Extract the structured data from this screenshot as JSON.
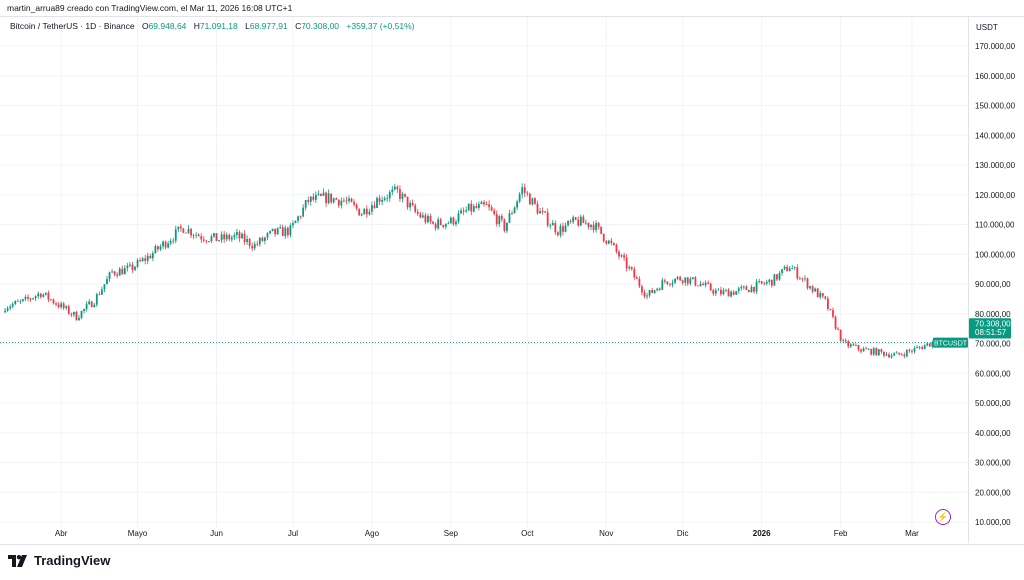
{
  "credit": "martin_arrua89 creado con TradingView.com, el Mar 11, 2026 16:08 UTC+1",
  "legend": {
    "symbol": "Bitcoin / TetherUS · 1D · Binance",
    "o_label": "O",
    "o": "69.948,64",
    "h_label": "H",
    "h": "71.091,18",
    "l_label": "L",
    "l": "68.977,91",
    "c_label": "C",
    "c": "70.308,00",
    "change": "+359,37 (+0,51%)"
  },
  "currency": "USDT",
  "price_label": {
    "ticker": "BTCUSDT",
    "price": "70.308,00",
    "countdown": "08:51:57"
  },
  "logo": "TradingView",
  "colors": {
    "up": "#089981",
    "down": "#f23645",
    "grid": "#f0f3fa",
    "accent": "#9c27b0"
  },
  "chart_data": {
    "type": "candlestick",
    "interval": "1D",
    "ylim": [
      10000,
      170000
    ],
    "yticks": [
      "170.000,00",
      "160.000,00",
      "150.000,00",
      "140.000,00",
      "130.000,00",
      "120.000,00",
      "110.000,00",
      "100.000,00",
      "90.000,00",
      "80.000,00",
      "70.000,00",
      "60.000,00",
      "50.000,00",
      "40.000,00",
      "30.000,00",
      "20.000,00",
      "10.000,00"
    ],
    "ytick_values": [
      170000,
      160000,
      150000,
      140000,
      130000,
      120000,
      110000,
      100000,
      90000,
      80000,
      70000,
      60000,
      50000,
      40000,
      30000,
      20000,
      10000
    ],
    "xticks": [
      {
        "label": "Abr",
        "date": "2025-04-01"
      },
      {
        "label": "Mayo",
        "date": "2025-05-01"
      },
      {
        "label": "Jun",
        "date": "2025-06-01"
      },
      {
        "label": "Jul",
        "date": "2025-07-01"
      },
      {
        "label": "Ago",
        "date": "2025-08-01"
      },
      {
        "label": "Sep",
        "date": "2025-09-01"
      },
      {
        "label": "Oct",
        "date": "2025-10-01"
      },
      {
        "label": "Nov",
        "date": "2025-11-01"
      },
      {
        "label": "Dic",
        "date": "2025-12-01"
      },
      {
        "label": "2026",
        "date": "2026-01-01",
        "bold": true
      },
      {
        "label": "Feb",
        "date": "2026-02-01"
      },
      {
        "label": "Mar",
        "date": "2026-03-01"
      }
    ],
    "xlim": [
      "2025-03-08",
      "2026-03-23"
    ],
    "weekly_closes": [
      [
        "2025-03-10",
        82500
      ],
      [
        "2025-03-17",
        84000
      ],
      [
        "2025-03-24",
        87000
      ],
      [
        "2025-03-31",
        83000
      ],
      [
        "2025-04-07",
        79000
      ],
      [
        "2025-04-14",
        84500
      ],
      [
        "2025-04-21",
        94000
      ],
      [
        "2025-04-28",
        95000
      ],
      [
        "2025-05-05",
        99000
      ],
      [
        "2025-05-12",
        104000
      ],
      [
        "2025-05-19",
        109000
      ],
      [
        "2025-05-26",
        106000
      ],
      [
        "2025-06-02",
        105000
      ],
      [
        "2025-06-09",
        106000
      ],
      [
        "2025-06-16",
        103000
      ],
      [
        "2025-06-23",
        107000
      ],
      [
        "2025-06-30",
        108000
      ],
      [
        "2025-07-07",
        118000
      ],
      [
        "2025-07-14",
        119000
      ],
      [
        "2025-07-21",
        118000
      ],
      [
        "2025-07-28",
        114000
      ],
      [
        "2025-08-04",
        119000
      ],
      [
        "2025-08-11",
        121000
      ],
      [
        "2025-08-18",
        114000
      ],
      [
        "2025-08-25",
        110000
      ],
      [
        "2025-09-01",
        111000
      ],
      [
        "2025-09-08",
        115000
      ],
      [
        "2025-09-15",
        116000
      ],
      [
        "2025-09-22",
        109000
      ],
      [
        "2025-09-29",
        122000
      ],
      [
        "2025-10-06",
        114000
      ],
      [
        "2025-10-13",
        108000
      ],
      [
        "2025-10-20",
        111000
      ],
      [
        "2025-10-27",
        110000
      ],
      [
        "2025-11-03",
        103000
      ],
      [
        "2025-11-10",
        95000
      ],
      [
        "2025-11-17",
        86000
      ],
      [
        "2025-11-24",
        91000
      ],
      [
        "2025-12-01",
        92000
      ],
      [
        "2025-12-08",
        90000
      ],
      [
        "2025-12-15",
        87000
      ],
      [
        "2025-12-22",
        87500
      ],
      [
        "2025-12-29",
        89000
      ],
      [
        "2026-01-05",
        91000
      ],
      [
        "2026-01-12",
        96000
      ],
      [
        "2026-01-19",
        90000
      ],
      [
        "2026-01-26",
        84000
      ],
      [
        "2026-02-02",
        70000
      ],
      [
        "2026-02-09",
        68000
      ],
      [
        "2026-02-16",
        67000
      ],
      [
        "2026-02-23",
        66000
      ],
      [
        "2026-03-02",
        68000
      ],
      [
        "2026-03-09",
        70308
      ]
    ],
    "last_candle": {
      "date": "2026-03-11",
      "open": 69948.64,
      "high": 71091.18,
      "low": 68977.91,
      "close": 70308.0
    },
    "current_price": 70308.0
  }
}
